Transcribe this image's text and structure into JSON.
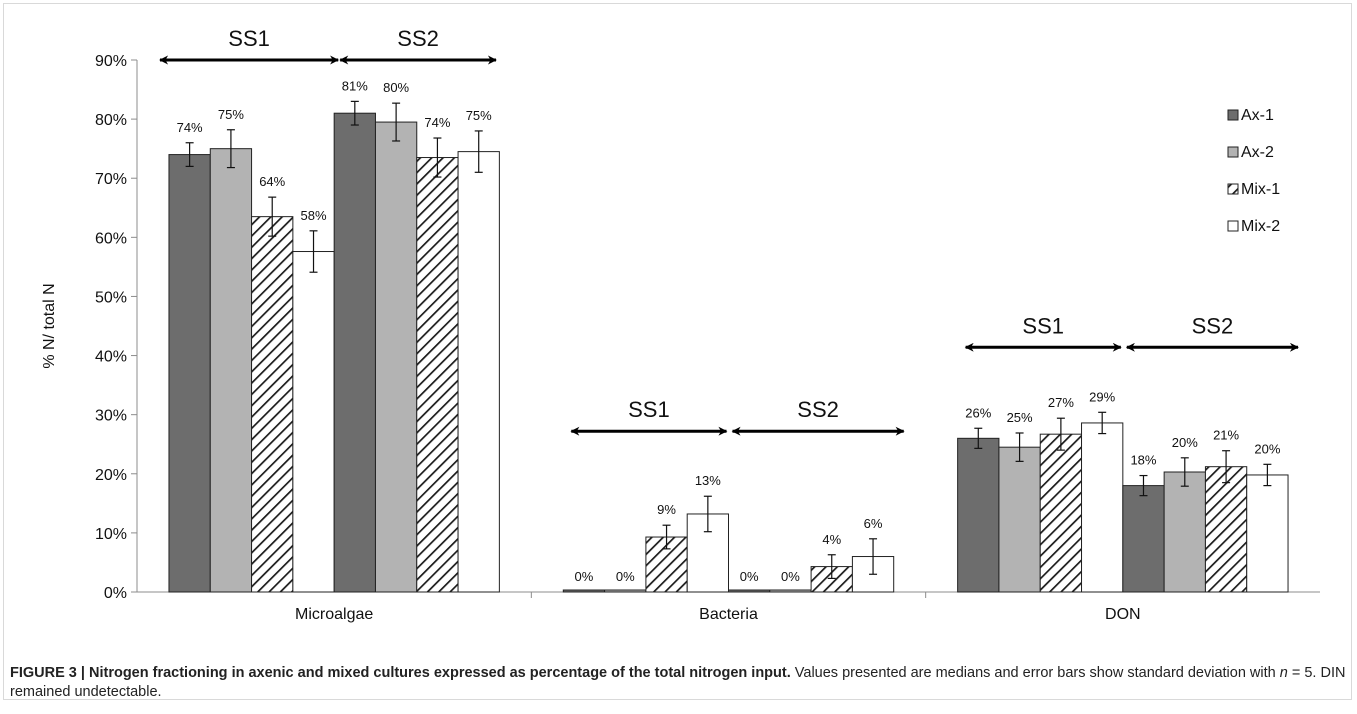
{
  "chart_data": {
    "type": "bar",
    "ylabel": "% N/ total N",
    "ylim": [
      0,
      90
    ],
    "yticks": [
      "0%",
      "10%",
      "20%",
      "30%",
      "40%",
      "50%",
      "60%",
      "70%",
      "80%",
      "90%"
    ],
    "categories": [
      "Microalgae",
      "Bacteria",
      "DON"
    ],
    "groups": [
      "SS1",
      "SS2"
    ],
    "series": [
      {
        "name": "Ax-1",
        "fill": "#6d6d6d",
        "pattern": "solid",
        "values": [
          [
            74,
            81
          ],
          [
            0,
            0
          ],
          [
            26,
            18
          ]
        ],
        "errors": [
          [
            2,
            2
          ],
          [
            0,
            0
          ],
          [
            1.7,
            1.7
          ]
        ],
        "labels": [
          [
            "74%",
            "81%"
          ],
          [
            "0%",
            "0%"
          ],
          [
            "26%",
            "18%"
          ]
        ]
      },
      {
        "name": "Ax-2",
        "fill": "#b3b3b3",
        "pattern": "solid",
        "values": [
          [
            75,
            79.5
          ],
          [
            0,
            0
          ],
          [
            24.5,
            20.3
          ]
        ],
        "errors": [
          [
            3.2,
            3.2
          ],
          [
            0,
            0
          ],
          [
            2.4,
            2.4
          ]
        ],
        "labels": [
          [
            "75%",
            "80%"
          ],
          [
            "0%",
            "0%"
          ],
          [
            "25%",
            "20%"
          ]
        ]
      },
      {
        "name": "Mix-1",
        "fill": "#ffffff",
        "pattern": "hatch",
        "values": [
          [
            63.5,
            73.5
          ],
          [
            9.3,
            4.3
          ],
          [
            26.7,
            21.2
          ]
        ],
        "errors": [
          [
            3.3,
            3.3
          ],
          [
            2,
            2
          ],
          [
            2.7,
            2.7
          ]
        ],
        "labels": [
          [
            "64%",
            "74%"
          ],
          [
            "9%",
            "4%"
          ],
          [
            "27%",
            "21%"
          ]
        ]
      },
      {
        "name": "Mix-2",
        "fill": "#ffffff",
        "pattern": "solid",
        "values": [
          [
            57.6,
            74.5
          ],
          [
            13.2,
            6
          ],
          [
            28.6,
            19.8
          ]
        ],
        "errors": [
          [
            3.5,
            3.5
          ],
          [
            3,
            3
          ],
          [
            1.8,
            1.8
          ]
        ],
        "labels": [
          [
            "58%",
            "75%"
          ],
          [
            "13%",
            "6%"
          ],
          [
            "29%",
            "20%"
          ]
        ]
      }
    ],
    "legend_position": "top-right",
    "gridlines": false
  },
  "caption": {
    "title": "FIGURE 3 | Nitrogen fractioning in axenic and mixed cultures expressed as percentage of the total nitrogen input.",
    "body_pre": " Values presented are medians and error bars show standard deviation with ",
    "n_symbol": "n",
    "body_post": " = 5. DIN remained undetectable."
  }
}
